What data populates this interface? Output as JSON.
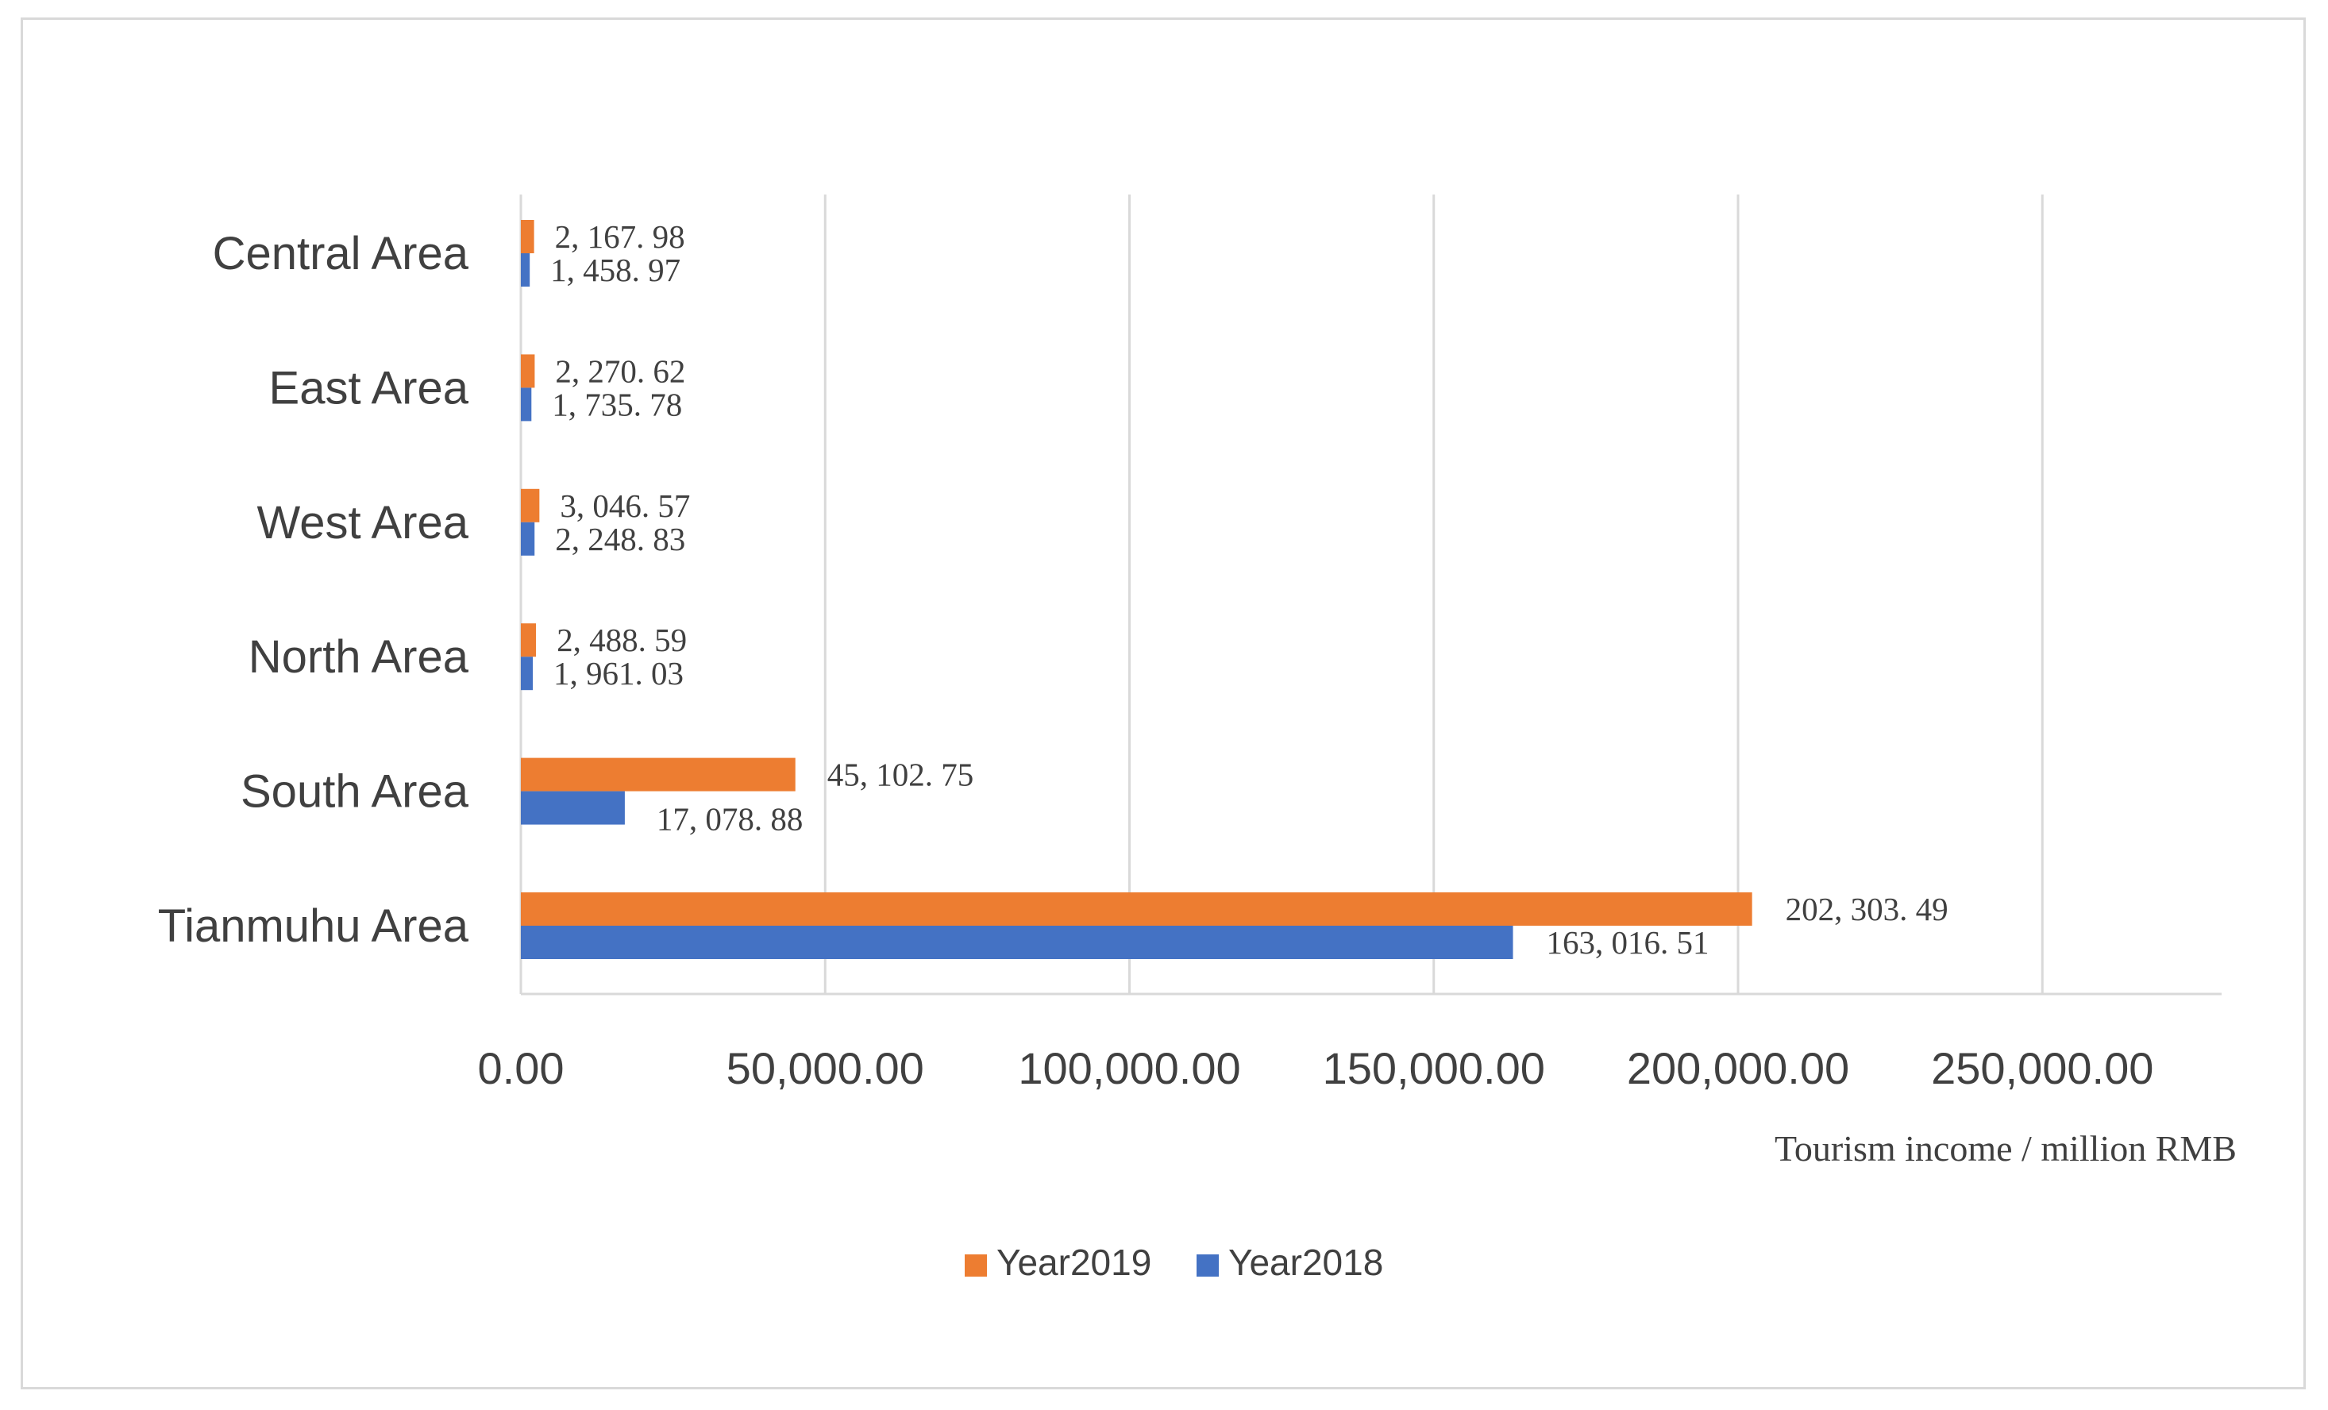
{
  "chart_data": {
    "type": "bar",
    "orientation": "horizontal",
    "categories": [
      "Central Area",
      "East Area",
      "West Area",
      "North Area",
      "South Area",
      "Tianmuhu Area"
    ],
    "series": [
      {
        "name": "Year2019",
        "color": "#ED7D31",
        "values": [
          2167.98,
          2270.62,
          3046.57,
          2488.59,
          45102.75,
          202303.49
        ],
        "labels": [
          "2, 167. 98",
          "2, 270. 62",
          "3, 046. 57",
          "2, 488. 59",
          "45, 102. 75",
          "202, 303. 49"
        ]
      },
      {
        "name": "Year2018",
        "color": "#4472C4",
        "values": [
          1458.97,
          1735.78,
          2248.83,
          1961.03,
          17078.88,
          163016.51
        ],
        "labels": [
          "1, 458. 97",
          "1, 735. 78",
          "2, 248. 83",
          "1, 961. 03",
          "17, 078. 88",
          "163, 016. 51"
        ]
      }
    ],
    "xticks": [
      0,
      50000,
      100000,
      150000,
      200000,
      250000
    ],
    "xtick_labels": [
      "0.00",
      "50,000.00",
      "100,000.00",
      "150,000.00",
      "200,000.00",
      "250,000.00"
    ],
    "xlim": [
      0,
      280000
    ],
    "xlabel": "Tourism income / million RMB",
    "ylabel": "",
    "title": "",
    "grid": "vertical",
    "legend": "bottom-center"
  }
}
